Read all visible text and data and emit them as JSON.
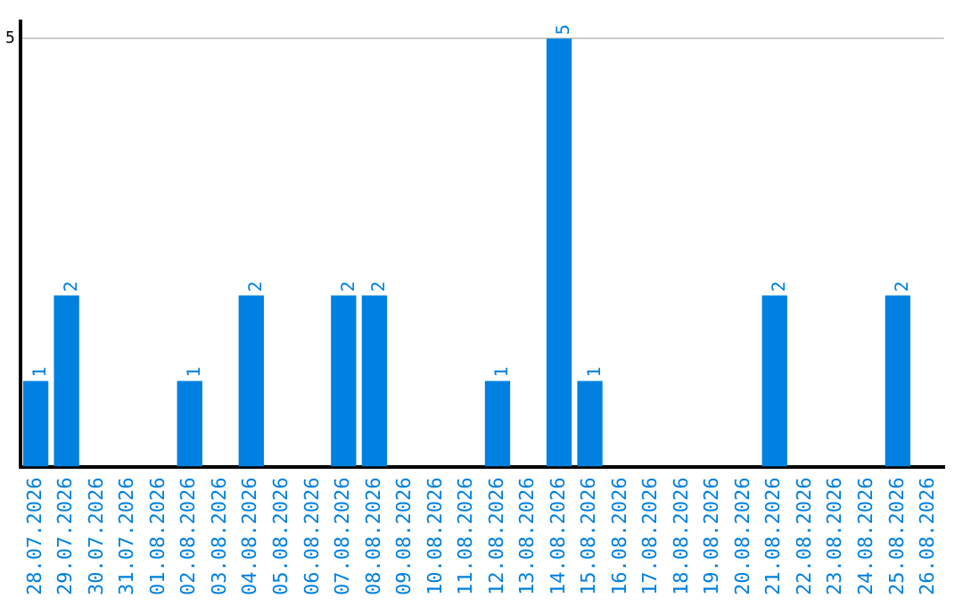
{
  "chart_data": {
    "type": "bar",
    "categories": [
      "28.07.2026",
      "29.07.2026",
      "30.07.2026",
      "31.07.2026",
      "01.08.2026",
      "02.08.2026",
      "03.08.2026",
      "04.08.2026",
      "05.08.2026",
      "06.08.2026",
      "07.08.2026",
      "08.08.2026",
      "09.08.2026",
      "10.08.2026",
      "11.08.2026",
      "12.08.2026",
      "13.08.2026",
      "14.08.2026",
      "15.08.2026",
      "16.08.2026",
      "17.08.2026",
      "18.08.2026",
      "19.08.2026",
      "20.08.2026",
      "21.08.2026",
      "22.08.2026",
      "23.08.2026",
      "24.08.2026",
      "25.08.2026",
      "26.08.2026"
    ],
    "values": [
      1,
      2,
      0,
      0,
      0,
      1,
      0,
      2,
      0,
      0,
      2,
      2,
      0,
      0,
      0,
      1,
      0,
      5,
      1,
      0,
      0,
      0,
      0,
      0,
      2,
      0,
      0,
      0,
      2,
      0
    ],
    "value_labels": [
      "1",
      "2",
      null,
      null,
      null,
      "1",
      null,
      "2",
      null,
      null,
      "2",
      "2",
      null,
      null,
      null,
      "1",
      null,
      "5",
      "1",
      null,
      null,
      null,
      null,
      null,
      "2",
      null,
      null,
      null,
      "2",
      null
    ],
    "color": "#0080e0",
    "ylim": [
      0,
      5.2
    ],
    "yticks": [
      5
    ],
    "grid": "y"
  }
}
